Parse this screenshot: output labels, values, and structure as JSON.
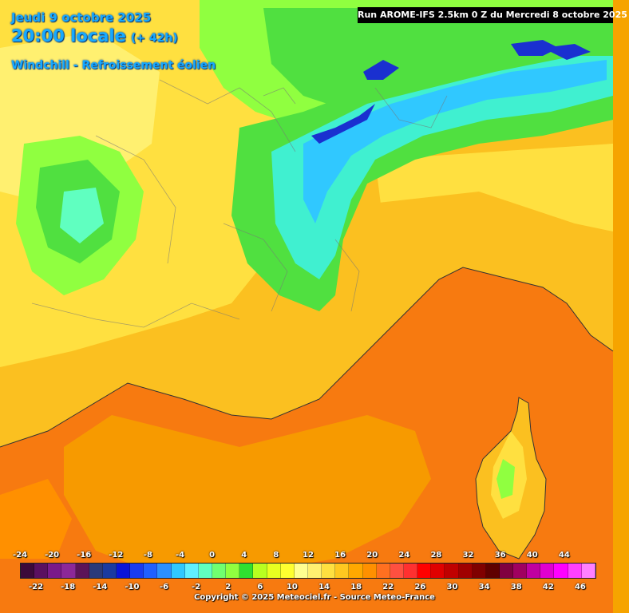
{
  "header": {
    "date": "Jeudi 9 octobre 2025",
    "time": "20:00 locale",
    "offset": "(+ 42h)",
    "parameter": "Windchill - Refroissement éolien"
  },
  "run_banner": "Run AROME-IFS 2.5km 0 Z du Mercredi 8 octobre 2025",
  "legend": {
    "top_labels": [
      "-24",
      "-20",
      "-16",
      "-12",
      "-8",
      "-4",
      "0",
      "4",
      "8",
      "12",
      "16",
      "20",
      "24",
      "28",
      "32",
      "36",
      "40",
      "44"
    ],
    "bottom_labels": [
      "-22",
      "-18",
      "-14",
      "-10",
      "-6",
      "-2",
      "2",
      "6",
      "10",
      "14",
      "18",
      "22",
      "26",
      "30",
      "34",
      "38",
      "42",
      "46"
    ],
    "colors": [
      "#3c0a3a",
      "#5a1060",
      "#7a1a8a",
      "#8c2898",
      "#5c1458",
      "#2a3a7a",
      "#1a3aa0",
      "#0a14d8",
      "#1a3cf0",
      "#2060ff",
      "#2c90ff",
      "#30c8ff",
      "#60f0ff",
      "#60ffc0",
      "#70ff70",
      "#90ff40",
      "#30e030",
      "#b8ff20",
      "#e8ff20",
      "#ffff30",
      "#ffff90",
      "#fff070",
      "#ffe040",
      "#ffc820",
      "#ffa800",
      "#ff9000",
      "#ff7020",
      "#ff5040",
      "#ff3030",
      "#ff0000",
      "#e00000",
      "#c00000",
      "#a00000",
      "#800000",
      "#600000",
      "#800040",
      "#a00060",
      "#c000a0",
      "#e000d0",
      "#ff00ff",
      "#ff40ff",
      "#ff80ff"
    ]
  },
  "copyright": "Copyright © 2025 Meteociel.fr - Source Meteo-France",
  "colors": {
    "sea": "#f77a10",
    "sea_light": "#f79a00",
    "land_warm": "#fbb400",
    "land_yellow": "#ffe040",
    "land_pale": "#fff070",
    "land_green": "#50e040",
    "alps_cyan": "#40f0d0",
    "alps_blue": "#1a30d0",
    "text_blue": "#17a9ff"
  }
}
